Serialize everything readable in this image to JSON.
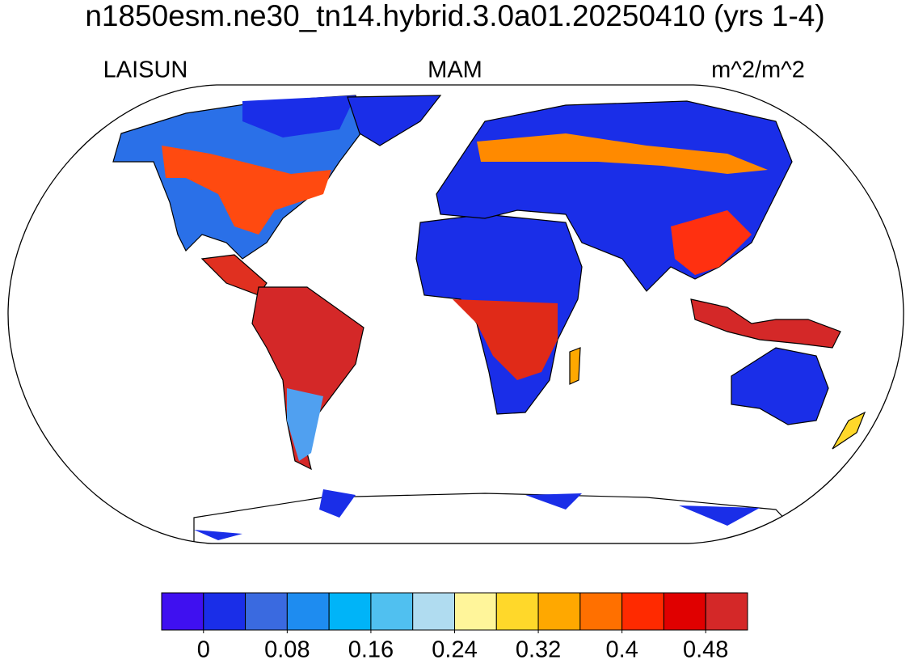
{
  "title": "n1850esm.ne30_tn14.hybrid.3.0a01.20250410 (yrs 1-4)",
  "left_label": "LAISUN",
  "center_label": "MAM",
  "right_label": "m^2/m^2",
  "colorbar": {
    "colors": [
      "#3f10f0",
      "#1a2ee8",
      "#3a6ae0",
      "#1e8cf0",
      "#00b4f8",
      "#50c0f0",
      "#b0dcf0",
      "#fff59a",
      "#ffd82a",
      "#ffa800",
      "#ff7000",
      "#ff2a00",
      "#e00000",
      "#d42828"
    ],
    "lim": [
      -0.04,
      0.52
    ],
    "ticks": [
      0,
      0.08,
      0.16,
      0.24,
      0.32,
      0.4,
      0.48
    ]
  }
}
